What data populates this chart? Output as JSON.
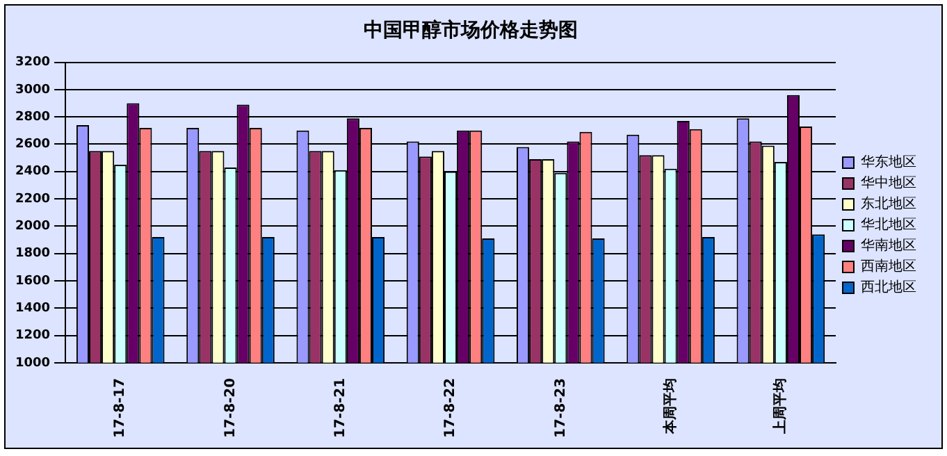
{
  "chart_data": {
    "type": "bar",
    "title": "中国甲醇市场价格走势图",
    "categories": [
      "17-8-17",
      "17-8-20",
      "17-8-21",
      "17-8-22",
      "17-8-23",
      "本周平均",
      "上周平均"
    ],
    "series": [
      {
        "name": "华东地区",
        "color": "#9999ff",
        "values": [
          2740,
          2720,
          2700,
          2620,
          2580,
          2670,
          2790
        ]
      },
      {
        "name": "华中地区",
        "color": "#993366",
        "values": [
          2550,
          2550,
          2550,
          2510,
          2490,
          2520,
          2620
        ]
      },
      {
        "name": "东北地区",
        "color": "#ffffcc",
        "values": [
          2550,
          2550,
          2550,
          2550,
          2490,
          2520,
          2590
        ]
      },
      {
        "name": "华北地区",
        "color": "#ccffff",
        "values": [
          2450,
          2430,
          2410,
          2400,
          2390,
          2420,
          2470
        ]
      },
      {
        "name": "华南地区",
        "color": "#660066",
        "values": [
          2900,
          2890,
          2790,
          2700,
          2620,
          2770,
          2960
        ]
      },
      {
        "name": "西南地区",
        "color": "#ff8080",
        "values": [
          2720,
          2720,
          2720,
          2700,
          2690,
          2710,
          2730
        ]
      },
      {
        "name": "西北地区",
        "color": "#0066cc",
        "values": [
          1920,
          1920,
          1920,
          1910,
          1910,
          1920,
          1940
        ]
      }
    ],
    "ylim": [
      1000,
      3200
    ],
    "yticks": [
      1000,
      1200,
      1400,
      1600,
      1800,
      2000,
      2200,
      2400,
      2600,
      2800,
      3000,
      3200
    ],
    "grid": "y",
    "legend": "right"
  }
}
